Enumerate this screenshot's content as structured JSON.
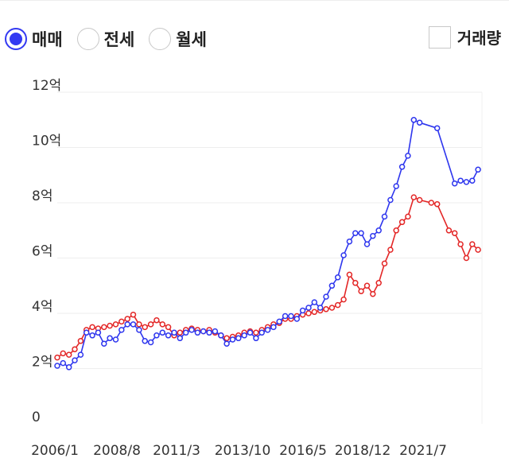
{
  "filters": {
    "options": [
      {
        "label": "매매",
        "checked": true
      },
      {
        "label": "전세",
        "checked": false
      },
      {
        "label": "월세",
        "checked": false
      }
    ],
    "volume_label": "거래량",
    "volume_checked": false,
    "accent_color": "#3339f2"
  },
  "chart_data": {
    "type": "line",
    "x_type": "date",
    "y_ticks": [
      {
        "value": 0,
        "label": "0"
      },
      {
        "value": 2,
        "label": "2억"
      },
      {
        "value": 4,
        "label": "4억"
      },
      {
        "value": 6,
        "label": "6억"
      },
      {
        "value": 8,
        "label": "8억"
      },
      {
        "value": 10,
        "label": "10억"
      },
      {
        "value": 12,
        "label": "12억"
      }
    ],
    "x_ticks": [
      "2006/1",
      "2008/8",
      "2011/3",
      "2013/10",
      "2016/5",
      "2018/12",
      "2021/7"
    ],
    "ylim": [
      0,
      12
    ],
    "xlim": [
      "2006-01",
      "2024-03"
    ],
    "grid": "horizontal",
    "series": [
      {
        "color": "#2e36ee",
        "points": [
          [
            "2006-01",
            2.1
          ],
          [
            "2006-04",
            2.2
          ],
          [
            "2006-07",
            2.05
          ],
          [
            "2006-10",
            2.3
          ],
          [
            "2007-01",
            2.5
          ],
          [
            "2007-04",
            3.3
          ],
          [
            "2007-07",
            3.2
          ],
          [
            "2007-10",
            3.3
          ],
          [
            "2008-01",
            2.9
          ],
          [
            "2008-04",
            3.1
          ],
          [
            "2008-07",
            3.05
          ],
          [
            "2008-10",
            3.4
          ],
          [
            "2009-01",
            3.6
          ],
          [
            "2009-04",
            3.6
          ],
          [
            "2009-07",
            3.4
          ],
          [
            "2009-10",
            3.0
          ],
          [
            "2010-01",
            2.95
          ],
          [
            "2010-04",
            3.2
          ],
          [
            "2010-07",
            3.3
          ],
          [
            "2010-10",
            3.2
          ],
          [
            "2011-01",
            3.3
          ],
          [
            "2011-04",
            3.1
          ],
          [
            "2011-07",
            3.3
          ],
          [
            "2011-10",
            3.4
          ],
          [
            "2012-01",
            3.3
          ],
          [
            "2012-04",
            3.35
          ],
          [
            "2012-07",
            3.3
          ],
          [
            "2012-10",
            3.35
          ],
          [
            "2013-01",
            3.2
          ],
          [
            "2013-04",
            2.9
          ],
          [
            "2013-07",
            3.05
          ],
          [
            "2013-10",
            3.1
          ],
          [
            "2014-01",
            3.2
          ],
          [
            "2014-04",
            3.3
          ],
          [
            "2014-07",
            3.1
          ],
          [
            "2014-10",
            3.3
          ],
          [
            "2015-01",
            3.4
          ],
          [
            "2015-04",
            3.5
          ],
          [
            "2015-07",
            3.7
          ],
          [
            "2015-10",
            3.9
          ],
          [
            "2016-01",
            3.9
          ],
          [
            "2016-04",
            3.8
          ],
          [
            "2016-07",
            4.1
          ],
          [
            "2016-10",
            4.2
          ],
          [
            "2017-01",
            4.4
          ],
          [
            "2017-04",
            4.2
          ],
          [
            "2017-07",
            4.6
          ],
          [
            "2017-10",
            5.0
          ],
          [
            "2018-01",
            5.3
          ],
          [
            "2018-04",
            6.1
          ],
          [
            "2018-07",
            6.6
          ],
          [
            "2018-10",
            6.9
          ],
          [
            "2019-01",
            6.9
          ],
          [
            "2019-04",
            6.5
          ],
          [
            "2019-07",
            6.8
          ],
          [
            "2019-10",
            7.0
          ],
          [
            "2020-01",
            7.5
          ],
          [
            "2020-04",
            8.1
          ],
          [
            "2020-07",
            8.6
          ],
          [
            "2020-10",
            9.3
          ],
          [
            "2021-01",
            9.7
          ],
          [
            "2021-04",
            11.0
          ],
          [
            "2021-07",
            10.9
          ],
          [
            "2022-04",
            10.7
          ],
          [
            "2023-01",
            8.7
          ],
          [
            "2023-04",
            8.8
          ],
          [
            "2023-07",
            8.75
          ],
          [
            "2023-10",
            8.8
          ],
          [
            "2024-01",
            9.2
          ]
        ]
      },
      {
        "color": "#e32626",
        "points": [
          [
            "2006-01",
            2.4
          ],
          [
            "2006-04",
            2.55
          ],
          [
            "2006-07",
            2.5
          ],
          [
            "2006-10",
            2.7
          ],
          [
            "2007-01",
            3.0
          ],
          [
            "2007-04",
            3.4
          ],
          [
            "2007-07",
            3.5
          ],
          [
            "2007-10",
            3.45
          ],
          [
            "2008-01",
            3.5
          ],
          [
            "2008-04",
            3.55
          ],
          [
            "2008-07",
            3.6
          ],
          [
            "2008-10",
            3.7
          ],
          [
            "2009-01",
            3.8
          ],
          [
            "2009-04",
            3.95
          ],
          [
            "2009-07",
            3.6
          ],
          [
            "2009-10",
            3.5
          ],
          [
            "2010-01",
            3.6
          ],
          [
            "2010-04",
            3.75
          ],
          [
            "2010-07",
            3.6
          ],
          [
            "2010-10",
            3.5
          ],
          [
            "2011-01",
            3.2
          ],
          [
            "2011-04",
            3.3
          ],
          [
            "2011-07",
            3.4
          ],
          [
            "2011-10",
            3.45
          ],
          [
            "2012-01",
            3.4
          ],
          [
            "2012-04",
            3.35
          ],
          [
            "2012-07",
            3.4
          ],
          [
            "2012-10",
            3.3
          ],
          [
            "2013-01",
            3.2
          ],
          [
            "2013-04",
            3.1
          ],
          [
            "2013-07",
            3.15
          ],
          [
            "2013-10",
            3.2
          ],
          [
            "2014-01",
            3.3
          ],
          [
            "2014-04",
            3.35
          ],
          [
            "2014-07",
            3.3
          ],
          [
            "2014-10",
            3.4
          ],
          [
            "2015-01",
            3.5
          ],
          [
            "2015-04",
            3.6
          ],
          [
            "2015-07",
            3.65
          ],
          [
            "2015-10",
            3.8
          ],
          [
            "2016-01",
            3.8
          ],
          [
            "2016-04",
            3.9
          ],
          [
            "2016-07",
            3.95
          ],
          [
            "2016-10",
            4.0
          ],
          [
            "2017-01",
            4.05
          ],
          [
            "2017-04",
            4.1
          ],
          [
            "2017-07",
            4.15
          ],
          [
            "2017-10",
            4.2
          ],
          [
            "2018-01",
            4.3
          ],
          [
            "2018-04",
            4.5
          ],
          [
            "2018-07",
            5.4
          ],
          [
            "2018-10",
            5.1
          ],
          [
            "2019-01",
            4.8
          ],
          [
            "2019-04",
            5.0
          ],
          [
            "2019-07",
            4.7
          ],
          [
            "2019-10",
            5.1
          ],
          [
            "2020-01",
            5.8
          ],
          [
            "2020-04",
            6.3
          ],
          [
            "2020-07",
            7.0
          ],
          [
            "2020-10",
            7.3
          ],
          [
            "2021-01",
            7.5
          ],
          [
            "2021-04",
            8.2
          ],
          [
            "2021-07",
            8.1
          ],
          [
            "2022-01",
            8.0
          ],
          [
            "2022-04",
            7.95
          ],
          [
            "2022-10",
            7.0
          ],
          [
            "2023-01",
            6.9
          ],
          [
            "2023-04",
            6.5
          ],
          [
            "2023-07",
            6.0
          ],
          [
            "2023-10",
            6.5
          ],
          [
            "2024-01",
            6.3
          ]
        ]
      }
    ]
  }
}
